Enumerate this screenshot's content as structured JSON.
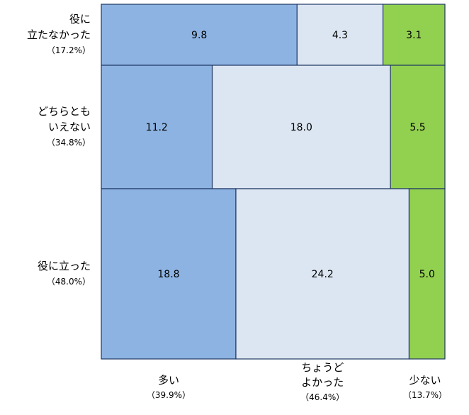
{
  "chart_data": {
    "type": "mosaic",
    "title": "",
    "rows": [
      {
        "label": "役に\n立たなかった",
        "share": "（17.2%）",
        "weight": 17.2,
        "values": [
          9.8,
          4.3,
          3.1
        ]
      },
      {
        "label": "どちらとも\nいえない",
        "share": "（34.8%）",
        "weight": 34.8,
        "values": [
          11.2,
          18.0,
          5.5
        ]
      },
      {
        "label": "役に立った",
        "share": "（48.0%）",
        "weight": 48.0,
        "values": [
          18.8,
          24.2,
          5.0
        ]
      }
    ],
    "columns": [
      {
        "label": "多い",
        "share": "（39.9%）"
      },
      {
        "label": "ちょうど\nよかった",
        "share": "（46.4%）"
      },
      {
        "label": "少ない",
        "share": "（13.7%）"
      }
    ],
    "value_labels": [
      [
        "9.8",
        "4.3",
        "3.1"
      ],
      [
        "11.2",
        "18.0",
        "5.5"
      ],
      [
        "18.8",
        "24.2",
        "5.0"
      ]
    ],
    "colors": [
      "#8db3e2",
      "#dce6f2",
      "#92d050"
    ],
    "border_color": "#1f3864"
  }
}
